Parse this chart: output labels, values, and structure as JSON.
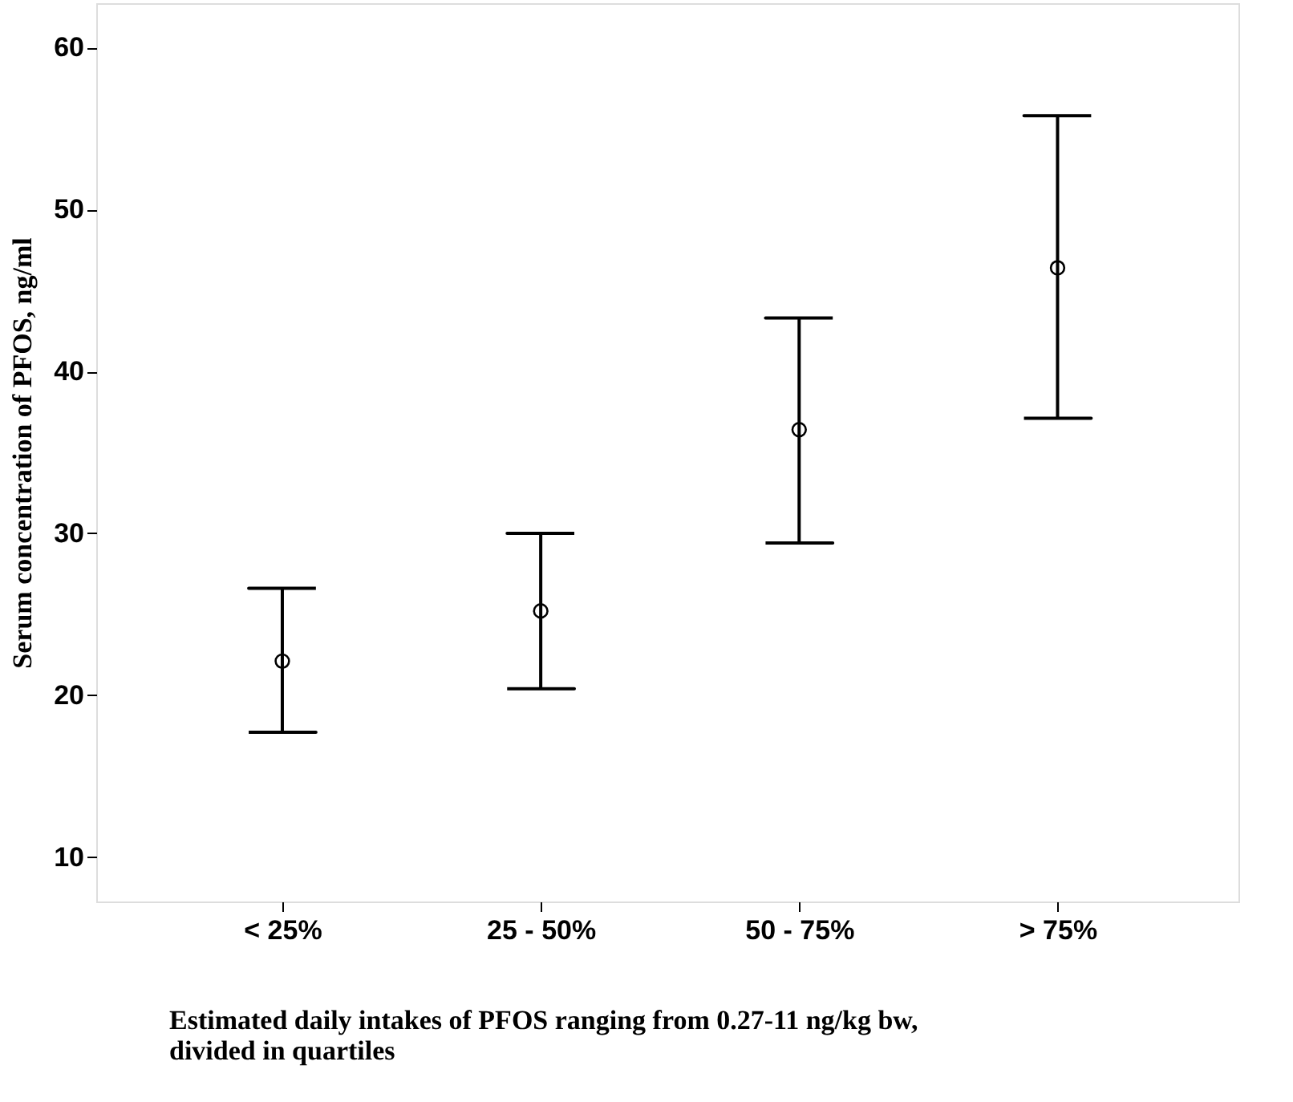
{
  "chart_data": {
    "type": "scatter",
    "xlabel": "Estimated daily intakes of PFOS ranging from 0.27-11 ng/kg bw,\ndivided in quartiles",
    "ylabel": "Serum concentration of PFOS, ng/ml",
    "categories": [
      "< 25%",
      "25 - 50%",
      "50 - 75%",
      "> 75%"
    ],
    "values": [
      22.1,
      25.2,
      36.4,
      46.4
    ],
    "color": "#000000",
    "errors": [
      [
        17.7,
        26.6
      ],
      [
        20.4,
        30.0
      ],
      [
        29.4,
        43.3
      ],
      [
        37.1,
        55.8
      ]
    ],
    "ylim": [
      7.25,
      62.75
    ],
    "yticks": [
      10,
      20,
      30,
      40,
      50,
      60
    ],
    "marker": "circle",
    "grid": false
  }
}
